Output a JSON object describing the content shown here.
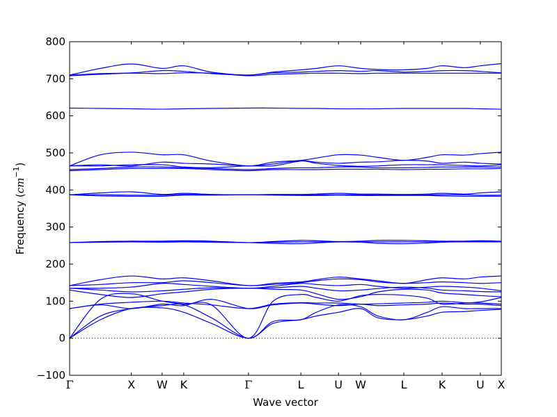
{
  "chart_data": {
    "type": "line",
    "title": "",
    "xlabel": "Wave vector",
    "ylabel": "Frequency (cm⁻¹)",
    "ylabel_parts": {
      "prefix": "Frequency (",
      "unit_base": "cm",
      "unit_exp": "−1",
      "suffix": ")"
    },
    "ylim": [
      -100,
      800
    ],
    "yticks": [
      -100,
      0,
      100,
      200,
      300,
      400,
      500,
      600,
      700,
      800
    ],
    "xlim": [
      0,
      7.0
    ],
    "kpoints": [
      {
        "label": "Γ",
        "x": 0.0
      },
      {
        "label": "X",
        "x": 1.0
      },
      {
        "label": "W",
        "x": 1.5
      },
      {
        "label": "K",
        "x": 1.85
      },
      {
        "label": "Γ",
        "x": 2.9
      },
      {
        "label": "L",
        "x": 3.75
      },
      {
        "label": "U",
        "x": 4.36
      },
      {
        "label": "W",
        "x": 4.72
      },
      {
        "label": "L",
        "x": 5.42
      },
      {
        "label": "K",
        "x": 6.04
      },
      {
        "label": "U",
        "x": 6.66
      },
      {
        "label": "X",
        "x": 7.0
      }
    ],
    "zero_line": true,
    "grid": false,
    "line_color": "#0000ff",
    "series": [
      {
        "x": [
          0,
          0.5,
          1.0,
          1.5,
          1.85,
          2.3,
          2.9,
          3.3,
          3.75,
          4.0,
          4.36,
          4.72,
          5.0,
          5.42,
          5.8,
          6.04,
          6.4,
          6.66,
          7.0
        ],
        "values": [
          0,
          50,
          80,
          82,
          70,
          40,
          0,
          40,
          50,
          60,
          70,
          80,
          55,
          50,
          60,
          70,
          72,
          75,
          78
        ]
      },
      {
        "x": [
          0,
          0.5,
          1.0,
          1.5,
          1.85,
          2.3,
          2.9,
          3.3,
          3.75,
          4.0,
          4.36,
          4.72,
          5.0,
          5.42,
          5.8,
          6.04,
          6.4,
          6.66,
          7.0
        ],
        "values": [
          0,
          60,
          80,
          88,
          90,
          55,
          0,
          45,
          50,
          70,
          90,
          85,
          60,
          50,
          70,
          85,
          80,
          80,
          80
        ]
      },
      {
        "x": [
          0,
          0.5,
          1.0,
          1.5,
          1.85,
          2.3,
          2.9,
          3.3,
          3.75,
          4.0,
          4.36,
          4.72,
          5.0,
          5.42,
          5.8,
          6.04,
          6.4,
          6.66,
          7.0
        ],
        "values": [
          0,
          105,
          120,
          100,
          92,
          90,
          0,
          100,
          118,
          110,
          100,
          115,
          118,
          116,
          108,
          92,
          95,
          98,
          110
        ]
      },
      {
        "x": [
          0,
          0.5,
          1.0,
          1.5,
          1.85,
          2.3,
          2.9,
          3.3,
          3.75,
          4.0,
          4.36,
          4.72,
          5.0,
          5.42,
          5.8,
          6.04,
          6.4,
          6.66,
          7.0
        ],
        "values": [
          80,
          90,
          80,
          92,
          88,
          105,
          80,
          90,
          95,
          92,
          88,
          92,
          88,
          90,
          92,
          95,
          92,
          92,
          88
        ]
      },
      {
        "x": [
          0,
          0.5,
          1.0,
          1.5,
          1.85,
          2.3,
          2.9,
          3.3,
          3.75,
          4.0,
          4.36,
          4.72,
          5.0,
          5.42,
          5.8,
          6.04,
          6.4,
          6.66,
          7.0
        ],
        "values": [
          80,
          92,
          97,
          100,
          95,
          90,
          80,
          92,
          96,
          95,
          95,
          92,
          93,
          95,
          97,
          100,
          96,
          95,
          92
        ]
      },
      {
        "x": [
          0,
          0.5,
          1.0,
          1.5,
          1.85,
          2.3,
          2.9,
          3.3,
          3.75,
          4.0,
          4.36,
          4.72,
          5.0,
          5.42,
          5.8,
          6.04,
          6.4,
          6.66,
          7.0
        ],
        "values": [
          130,
          118,
          110,
          120,
          125,
          132,
          135,
          132,
          130,
          120,
          105,
          112,
          125,
          132,
          130,
          122,
          118,
          115,
          112
        ]
      },
      {
        "x": [
          0,
          0.5,
          1.0,
          1.5,
          1.85,
          2.3,
          2.9,
          3.3,
          3.75,
          4.0,
          4.36,
          4.72,
          5.0,
          5.42,
          5.8,
          6.04,
          6.4,
          6.66,
          7.0
        ],
        "values": [
          135,
          130,
          125,
          128,
          132,
          136,
          135,
          136,
          140,
          135,
          128,
          130,
          134,
          138,
          135,
          130,
          128,
          126,
          125
        ]
      },
      {
        "x": [
          0,
          0.5,
          1.0,
          1.5,
          1.85,
          2.3,
          2.9,
          3.3,
          3.75,
          4.0,
          4.36,
          4.72,
          5.0,
          5.42,
          5.8,
          6.04,
          6.4,
          6.66,
          7.0
        ],
        "values": [
          135,
          135,
          138,
          148,
          145,
          140,
          135,
          140,
          148,
          145,
          142,
          145,
          140,
          135,
          138,
          140,
          138,
          135,
          128
        ]
      },
      {
        "x": [
          0,
          0.5,
          1.0,
          1.5,
          1.85,
          2.3,
          2.9,
          3.3,
          3.75,
          4.0,
          4.36,
          4.72,
          5.0,
          5.42,
          5.8,
          6.04,
          6.4,
          6.66,
          7.0
        ],
        "values": [
          142,
          145,
          150,
          150,
          155,
          150,
          142,
          145,
          150,
          155,
          160,
          158,
          152,
          148,
          150,
          152,
          150,
          148,
          150
        ]
      },
      {
        "x": [
          0,
          0.5,
          1.0,
          1.5,
          1.85,
          2.3,
          2.9,
          3.3,
          3.75,
          4.0,
          4.36,
          4.72,
          5.0,
          5.42,
          5.8,
          6.04,
          6.4,
          6.66,
          7.0
        ],
        "values": [
          142,
          158,
          168,
          160,
          163,
          155,
          142,
          148,
          152,
          158,
          165,
          160,
          155,
          148,
          158,
          163,
          160,
          165,
          168
        ]
      },
      {
        "x": [
          0,
          0.5,
          1.0,
          1.5,
          1.85,
          2.3,
          2.9,
          3.3,
          3.75,
          4.0,
          4.36,
          4.72,
          5.0,
          5.42,
          5.8,
          6.04,
          6.4,
          6.66,
          7.0
        ],
        "values": [
          258,
          259,
          260,
          259,
          260,
          259,
          258,
          259,
          260,
          260,
          260,
          260,
          260,
          260,
          260,
          260,
          260,
          260,
          260
        ]
      },
      {
        "x": [
          0,
          0.5,
          1.0,
          1.5,
          1.85,
          2.3,
          2.9,
          3.3,
          3.75,
          4.0,
          4.36,
          4.72,
          5.0,
          5.42,
          5.8,
          6.04,
          6.4,
          6.66,
          7.0
        ],
        "values": [
          258,
          260,
          262,
          261,
          262,
          261,
          258,
          256,
          255,
          257,
          260,
          259,
          256,
          255,
          257,
          259,
          261,
          261,
          261
        ]
      },
      {
        "x": [
          0,
          0.5,
          1.0,
          1.5,
          1.85,
          2.3,
          2.9,
          3.3,
          3.75,
          4.0,
          4.36,
          4.72,
          5.0,
          5.42,
          5.8,
          6.04,
          6.4,
          6.66,
          7.0
        ],
        "values": [
          258,
          261,
          262,
          262,
          263,
          262,
          258,
          261,
          264,
          263,
          261,
          262,
          264,
          264,
          263,
          262,
          262,
          263,
          262
        ]
      },
      {
        "x": [
          0,
          0.5,
          1.0,
          1.5,
          1.85,
          2.3,
          2.9,
          3.3,
          3.75,
          4.0,
          4.36,
          4.72,
          5.0,
          5.42,
          5.8,
          6.04,
          6.4,
          6.66,
          7.0
        ],
        "values": [
          387,
          384,
          383,
          383,
          386,
          386,
          387,
          386,
          385,
          385,
          386,
          385,
          385,
          385,
          385,
          384,
          383,
          383,
          383
        ]
      },
      {
        "x": [
          0,
          0.5,
          1.0,
          1.5,
          1.85,
          2.3,
          2.9,
          3.3,
          3.75,
          4.0,
          4.36,
          4.72,
          5.0,
          5.42,
          5.8,
          6.04,
          6.4,
          6.66,
          7.0
        ],
        "values": [
          387,
          387,
          386,
          386,
          388,
          387,
          387,
          387,
          387,
          387,
          387,
          387,
          387,
          387,
          387,
          387,
          387,
          386,
          386
        ]
      },
      {
        "x": [
          0,
          0.5,
          1.0,
          1.5,
          1.85,
          2.3,
          2.9,
          3.3,
          3.75,
          4.0,
          4.36,
          4.72,
          5.0,
          5.42,
          5.8,
          6.04,
          6.4,
          6.66,
          7.0
        ],
        "values": [
          387,
          392,
          395,
          388,
          391,
          388,
          387,
          388,
          388,
          389,
          391,
          389,
          389,
          388,
          389,
          391,
          389,
          392,
          395
        ]
      },
      {
        "x": [
          0,
          0.5,
          1.0,
          1.5,
          1.85,
          2.3,
          2.9,
          3.3,
          3.75,
          4.0,
          4.36,
          4.72,
          5.0,
          5.42,
          5.8,
          6.04,
          6.4,
          6.66,
          7.0
        ],
        "values": [
          452,
          455,
          458,
          458,
          458,
          455,
          452,
          455,
          455,
          455,
          456,
          456,
          456,
          455,
          456,
          456,
          457,
          457,
          458
        ]
      },
      {
        "x": [
          0,
          0.5,
          1.0,
          1.5,
          1.85,
          2.3,
          2.9,
          3.3,
          3.75,
          4.0,
          4.36,
          4.72,
          5.0,
          5.42,
          5.8,
          6.04,
          6.4,
          6.66,
          7.0
        ],
        "values": [
          455,
          458,
          462,
          462,
          460,
          458,
          455,
          458,
          460,
          460,
          462,
          462,
          460,
          460,
          461,
          462,
          462,
          462,
          462
        ]
      },
      {
        "x": [
          0,
          0.5,
          1.0,
          1.5,
          1.85,
          2.3,
          2.9,
          3.3,
          3.75,
          4.0,
          4.36,
          4.72,
          5.0,
          5.42,
          5.8,
          6.04,
          6.4,
          6.66,
          7.0
        ],
        "values": [
          465,
          465,
          468,
          468,
          462,
          460,
          465,
          465,
          478,
          472,
          466,
          464,
          465,
          468,
          468,
          468,
          466,
          465,
          468
        ]
      },
      {
        "x": [
          0,
          0.5,
          1.0,
          1.5,
          1.85,
          2.3,
          2.9,
          3.3,
          3.75,
          4.0,
          4.36,
          4.72,
          5.0,
          5.42,
          5.8,
          6.04,
          6.4,
          6.66,
          7.0
        ],
        "values": [
          465,
          468,
          465,
          475,
          472,
          470,
          465,
          470,
          479,
          475,
          472,
          475,
          476,
          480,
          478,
          472,
          475,
          472,
          470
        ]
      },
      {
        "x": [
          0,
          0.5,
          1.0,
          1.5,
          1.85,
          2.3,
          2.9,
          3.3,
          3.75,
          4.0,
          4.36,
          4.72,
          5.0,
          5.42,
          5.8,
          6.04,
          6.4,
          6.66,
          7.0
        ],
        "values": [
          465,
          495,
          502,
          495,
          495,
          478,
          465,
          475,
          480,
          486,
          495,
          494,
          488,
          480,
          488,
          495,
          494,
          498,
          502
        ]
      },
      {
        "x": [
          0,
          0.5,
          1.0,
          1.5,
          1.85,
          2.3,
          2.9,
          3.3,
          3.75,
          4.0,
          4.36,
          4.72,
          5.0,
          5.42,
          5.8,
          6.04,
          6.4,
          6.66,
          7.0
        ],
        "values": [
          621,
          620,
          619,
          618,
          619,
          620,
          621,
          621,
          620,
          620,
          619,
          619,
          619,
          620,
          620,
          620,
          620,
          619,
          618
        ]
      },
      {
        "x": [
          0,
          0.5,
          1.0,
          1.5,
          1.85,
          2.3,
          2.9,
          3.3,
          3.75,
          4.0,
          4.36,
          4.72,
          5.0,
          5.42,
          5.8,
          6.04,
          6.4,
          6.66,
          7.0
        ],
        "values": [
          708,
          712,
          715,
          714,
          716,
          715,
          708,
          712,
          714,
          715,
          715,
          714,
          715,
          715,
          715,
          715,
          715,
          715,
          715
        ]
      },
      {
        "x": [
          0,
          0.5,
          1.0,
          1.5,
          1.85,
          2.3,
          2.9,
          3.3,
          3.75,
          4.0,
          4.36,
          4.72,
          5.0,
          5.42,
          5.8,
          6.04,
          6.4,
          6.66,
          7.0
        ],
        "values": [
          710,
          714,
          716,
          722,
          720,
          714,
          710,
          716,
          718,
          720,
          722,
          720,
          722,
          718,
          720,
          722,
          722,
          720,
          716
        ]
      },
      {
        "x": [
          0,
          0.5,
          1.0,
          1.5,
          1.85,
          2.3,
          2.9,
          3.3,
          3.75,
          4.0,
          4.36,
          4.72,
          5.0,
          5.42,
          5.8,
          6.04,
          6.4,
          6.66,
          7.0
        ],
        "values": [
          710,
          728,
          740,
          728,
          735,
          718,
          710,
          718,
          724,
          728,
          735,
          728,
          725,
          724,
          728,
          735,
          730,
          735,
          741
        ]
      }
    ]
  }
}
